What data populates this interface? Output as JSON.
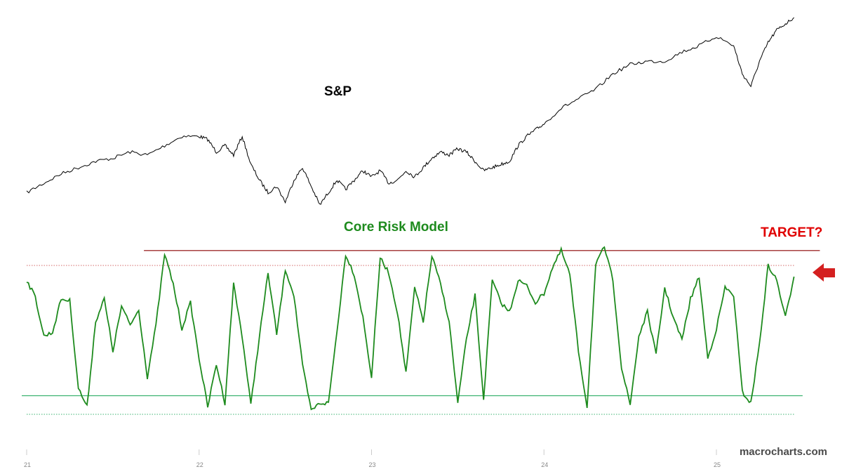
{
  "chart_data": [
    {
      "type": "line",
      "title": "S&P",
      "series": [
        {
          "name": "S&P",
          "x": [
            21.0,
            21.1,
            21.2,
            21.3,
            21.4,
            21.5,
            21.6,
            21.7,
            21.8,
            21.9,
            22.0,
            22.05,
            22.1,
            22.15,
            22.2,
            22.25,
            22.3,
            22.35,
            22.4,
            22.45,
            22.5,
            22.55,
            22.6,
            22.65,
            22.7,
            22.75,
            22.8,
            22.85,
            22.9,
            22.95,
            23.0,
            23.05,
            23.1,
            23.15,
            23.2,
            23.25,
            23.3,
            23.35,
            23.4,
            23.45,
            23.5,
            23.55,
            23.6,
            23.65,
            23.7,
            23.75,
            23.8,
            23.85,
            23.9,
            23.95,
            24.0,
            24.1,
            24.2,
            24.3,
            24.4,
            24.5,
            24.6,
            24.7,
            24.8,
            24.9,
            25.0,
            25.1,
            25.15,
            25.2,
            25.25,
            25.3,
            25.35,
            25.4,
            25.45
          ],
          "values": [
            100,
            103,
            106,
            108,
            110,
            111,
            113,
            112,
            115,
            118,
            118,
            117,
            113,
            115,
            112,
            118,
            109,
            104,
            100,
            102,
            97,
            104,
            108,
            102,
            96,
            100,
            104,
            101,
            104,
            107,
            105,
            107,
            103,
            104,
            107,
            105,
            108,
            111,
            113,
            112,
            114,
            113,
            110,
            107,
            108,
            109,
            110,
            115,
            118,
            120,
            122,
            127,
            130,
            133,
            138,
            141,
            142,
            142,
            145,
            147,
            150,
            147,
            138,
            134,
            142,
            148,
            152,
            154,
            156
          ]
        }
      ]
    },
    {
      "type": "line",
      "title": "Core Risk Model",
      "series": [
        {
          "name": "Core Risk Model",
          "x": [
            21.0,
            21.05,
            21.1,
            21.15,
            21.2,
            21.25,
            21.3,
            21.35,
            21.4,
            21.45,
            21.5,
            21.55,
            21.6,
            21.65,
            21.7,
            21.75,
            21.8,
            21.85,
            21.9,
            21.95,
            22.0,
            22.05,
            22.1,
            22.15,
            22.2,
            22.25,
            22.3,
            22.35,
            22.4,
            22.45,
            22.5,
            22.55,
            22.6,
            22.65,
            22.7,
            22.75,
            22.8,
            22.85,
            22.9,
            22.95,
            23.0,
            23.05,
            23.1,
            23.15,
            23.2,
            23.25,
            23.3,
            23.35,
            23.4,
            23.45,
            23.5,
            23.55,
            23.6,
            23.65,
            23.7,
            23.75,
            23.8,
            23.85,
            23.9,
            23.95,
            24.0,
            24.05,
            24.1,
            24.15,
            24.2,
            24.25,
            24.3,
            24.35,
            24.4,
            24.45,
            24.5,
            24.55,
            24.6,
            24.65,
            24.7,
            24.75,
            24.8,
            24.85,
            24.9,
            24.95,
            25.0,
            25.05,
            25.1,
            25.15,
            25.2,
            25.25,
            25.3,
            25.35,
            25.4,
            25.45
          ],
          "values": [
            0.72,
            0.63,
            0.42,
            0.44,
            0.62,
            0.61,
            0.14,
            0.04,
            0.5,
            0.62,
            0.34,
            0.58,
            0.48,
            0.56,
            0.2,
            0.48,
            0.86,
            0.7,
            0.46,
            0.6,
            0.3,
            0.04,
            0.27,
            0.06,
            0.7,
            0.42,
            0.05,
            0.42,
            0.76,
            0.43,
            0.78,
            0.64,
            0.26,
            0.02,
            0.06,
            0.06,
            0.45,
            0.86,
            0.75,
            0.52,
            0.2,
            0.84,
            0.76,
            0.55,
            0.22,
            0.68,
            0.5,
            0.85,
            0.7,
            0.5,
            0.06,
            0.4,
            0.64,
            0.08,
            0.72,
            0.6,
            0.55,
            0.72,
            0.69,
            0.6,
            0.65,
            0.79,
            0.88,
            0.75,
            0.34,
            0.04,
            0.8,
            0.9,
            0.72,
            0.25,
            0.05,
            0.42,
            0.55,
            0.32,
            0.68,
            0.52,
            0.4,
            0.62,
            0.74,
            0.3,
            0.46,
            0.68,
            0.64,
            0.12,
            0.06,
            0.38,
            0.8,
            0.72,
            0.52,
            0.74
          ]
        }
      ],
      "reference_lines": [
        {
          "style": "solid",
          "color": "#8b0000",
          "value": 0.88
        },
        {
          "style": "dotted",
          "color": "#d46a6a",
          "value": 0.8
        },
        {
          "style": "solid",
          "color": "#3cb371",
          "value": 0.1
        },
        {
          "style": "dotted",
          "color": "#3cb371",
          "value": 0.0
        }
      ],
      "annotations": [
        "TARGET?"
      ],
      "xlim": [
        21.0,
        25.65
      ]
    }
  ],
  "x_axis": {
    "ticks": [
      "21",
      "22",
      "23",
      "24",
      "25"
    ]
  },
  "watermark": "macrocharts.com",
  "colors": {
    "sp": "#000000",
    "model": "#1e8b1e",
    "target": "#e00000",
    "arrow": "#d42020"
  },
  "icons": {
    "target_arrow": "left-arrow-icon"
  }
}
